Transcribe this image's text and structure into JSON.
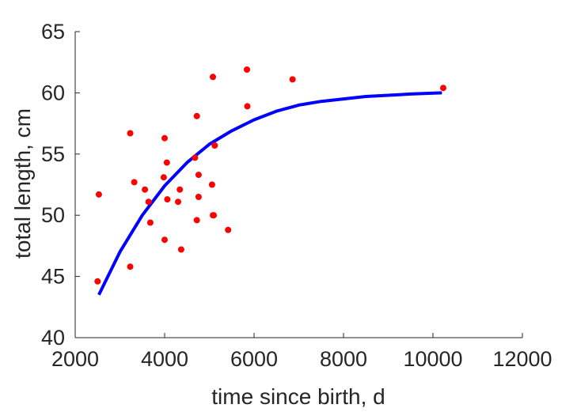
{
  "chart_data": {
    "type": "scatter",
    "xlabel": "time since birth, d",
    "ylabel": "total length, cm",
    "xlim": [
      2000,
      12000
    ],
    "ylim": [
      40,
      65
    ],
    "xticks": [
      "2000",
      "4000",
      "6000",
      "8000",
      "10000",
      "12000"
    ],
    "yticks": [
      "40",
      "45",
      "50",
      "55",
      "60",
      "65"
    ],
    "grid": false,
    "legend": "none",
    "colors": {
      "points": "#ff0000",
      "fit": "#0000ff",
      "axes": "#262626"
    },
    "series": [
      {
        "kind": "scatter",
        "x": [
          2500,
          2530,
          3230,
          3230,
          3320,
          3560,
          3640,
          3680,
          3980,
          4000,
          4000,
          4050,
          4060,
          4300,
          4340,
          4370,
          4680,
          4720,
          4720,
          4760,
          4760,
          5060,
          5080,
          5080,
          5100,
          5120,
          5420,
          5840,
          5850,
          6860,
          10230
        ],
        "y": [
          44.6,
          51.7,
          56.7,
          45.8,
          52.7,
          52.1,
          51.1,
          49.4,
          53.1,
          56.3,
          48.0,
          54.3,
          51.3,
          51.1,
          52.1,
          47.2,
          54.7,
          58.1,
          49.6,
          51.5,
          53.3,
          52.5,
          61.3,
          50.0,
          50.0,
          55.7,
          48.8,
          61.9,
          58.9,
          61.1,
          60.4
        ]
      },
      {
        "kind": "line",
        "x": [
          2530,
          3000,
          3500,
          4000,
          4500,
          5000,
          5500,
          6000,
          6500,
          7000,
          7500,
          8000,
          8500,
          9000,
          9500,
          10200
        ],
        "y": [
          43.5,
          47.0,
          50.0,
          52.4,
          54.3,
          55.8,
          56.9,
          57.8,
          58.5,
          59.0,
          59.3,
          59.5,
          59.7,
          59.8,
          59.9,
          60.0
        ]
      }
    ]
  }
}
